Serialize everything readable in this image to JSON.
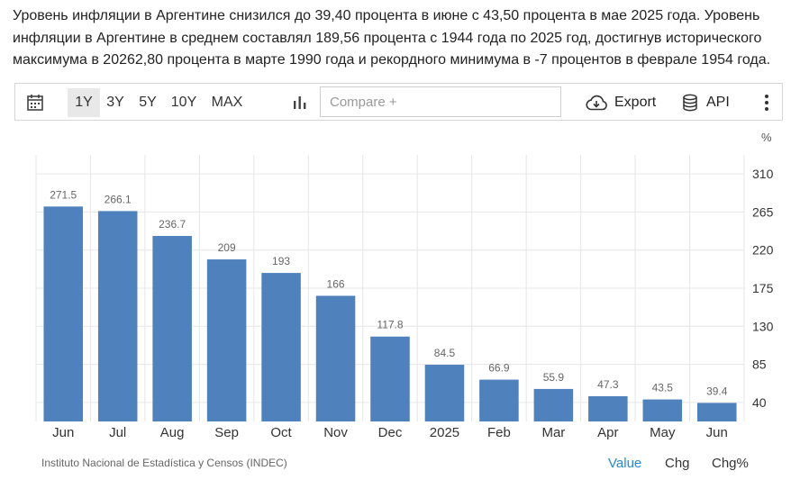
{
  "description": "Уровень инфляции в Аргентине снизился до 39,40 процента в июне с 43,50 процента в мае 2025 года. Уровень инфляции в Аргентине в среднем составлял 189,56 процента с 1944 года по 2025 год, достигнув исторического максимума в 20262,80 процента в марте 1990 года и рекордного минимума в -7 процентов в феврале 1954 года.",
  "toolbar": {
    "calendar_icon": "calendar-icon",
    "ranges": [
      "1Y",
      "3Y",
      "5Y",
      "10Y",
      "MAX"
    ],
    "active_range": "1Y",
    "chart_type_icon": "bar-chart-icon",
    "compare_placeholder": "Compare +",
    "export_label": "Export",
    "api_label": "API",
    "more_icon": "vertical-dots-icon"
  },
  "footer": {
    "source": "Instituto Nacional de Estadística y Censos (INDEC)",
    "tabs": [
      "Value",
      "Chg",
      "Chg%"
    ],
    "active_tab": "Value"
  },
  "colors": {
    "bar": "#4f81bd",
    "active_tab": "#2a8ad4",
    "grid": "#e6e6e6"
  },
  "chart_data": {
    "type": "bar",
    "categories": [
      "Jun",
      "Jul",
      "Aug",
      "Sep",
      "Oct",
      "Nov",
      "Dec",
      "2025",
      "Feb",
      "Mar",
      "Apr",
      "May",
      "Jun"
    ],
    "values": [
      271.5,
      266.1,
      236.7,
      209,
      193,
      166,
      117.8,
      84.5,
      66.9,
      55.9,
      47.3,
      43.5,
      39.4
    ],
    "data_labels": [
      "271.5",
      "266.1",
      "236.7",
      "209",
      "193",
      "166",
      "117.8",
      "84.5",
      "66.9",
      "55.9",
      "47.3",
      "43.5",
      "39.4"
    ],
    "unit": "%",
    "yticks": [
      40,
      85,
      130,
      175,
      220,
      265,
      310
    ],
    "ylim": [
      17.5,
      332.5
    ],
    "y_axis_position": "right",
    "grid": true,
    "legend": "none"
  }
}
